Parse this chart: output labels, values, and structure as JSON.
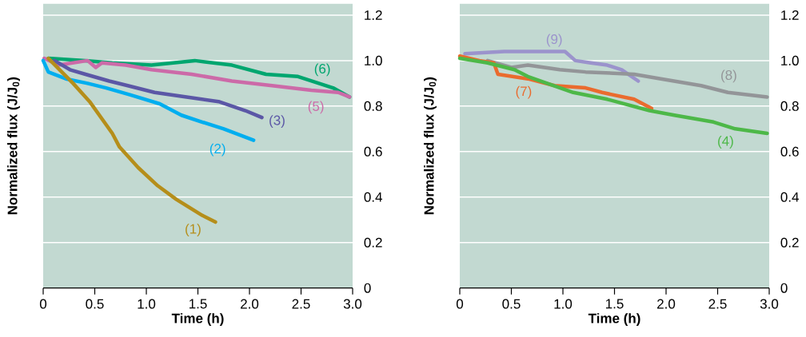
{
  "chart_data": [
    {
      "type": "line",
      "xlabel": "Time (h)",
      "ylabel": "Normalized flux (J/J$_{0}$)",
      "xlim": [
        0,
        3
      ],
      "ylim": [
        0,
        1.25
      ],
      "xticks": [
        0,
        {
          "value": 0.5,
          "label": "0.5"
        },
        {
          "value": 1,
          "label": "1.0"
        },
        {
          "value": 1.5,
          "label": "1.5"
        },
        {
          "value": 2,
          "label": "2.0"
        },
        {
          "value": 2.5,
          "label": "2.5"
        },
        {
          "value": 3,
          "label": "3.0"
        }
      ],
      "yticks": [
        0,
        {
          "value": 0.2,
          "label": "0.2"
        },
        {
          "value": 0.4,
          "label": "0.4"
        },
        {
          "value": 0.6,
          "label": "0.6"
        },
        {
          "value": 0.8,
          "label": "0.8"
        },
        {
          "value": 1,
          "label": "1.0"
        },
        {
          "value": 1.2,
          "label": "1.2"
        }
      ],
      "grid": "y",
      "marker": "none",
      "line_style": "solid",
      "series": [
        {
          "name": "(1)",
          "color": "#b58e1a",
          "x": [
            0.05,
            0.29,
            0.45,
            0.67,
            0.74,
            0.92,
            1.11,
            1.29,
            1.54,
            1.67
          ],
          "values": [
            1.01,
            0.9,
            0.82,
            0.68,
            0.62,
            0.53,
            0.45,
            0.39,
            0.32,
            0.29
          ]
        },
        {
          "name": "(2)",
          "color": "#00aeef",
          "x": [
            0,
            0.05,
            0.22,
            0.43,
            0.61,
            0.84,
            1.13,
            1.34,
            1.54,
            1.75,
            2.04
          ],
          "values": [
            1.0,
            0.95,
            0.92,
            0.9,
            0.88,
            0.85,
            0.81,
            0.76,
            0.73,
            0.7,
            0.65
          ]
        },
        {
          "name": "(3)",
          "color": "#5b57a6",
          "x": [
            0.11,
            0.26,
            0.41,
            0.64,
            0.82,
            1.08,
            1.39,
            1.7,
            1.96,
            2.12
          ],
          "values": [
            1.0,
            0.96,
            0.94,
            0.91,
            0.89,
            0.86,
            0.84,
            0.82,
            0.78,
            0.75
          ]
        },
        {
          "name": "(5)",
          "color": "#cc6aa8",
          "x": [
            0.01,
            0.15,
            0.43,
            0.51,
            0.57,
            0.8,
            1.05,
            1.44,
            1.83,
            2.22,
            2.6,
            2.86,
            2.97
          ],
          "values": [
            1.01,
            0.98,
            1.0,
            0.97,
            0.99,
            0.98,
            0.96,
            0.94,
            0.91,
            0.89,
            0.87,
            0.86,
            0.84
          ]
        },
        {
          "name": "(6)",
          "color": "#00a66f",
          "x": [
            0.05,
            0.41,
            0.67,
            1.05,
            1.47,
            1.83,
            2.16,
            2.47,
            2.81,
            2.97
          ],
          "values": [
            1.01,
            1.0,
            0.99,
            0.98,
            1.0,
            0.98,
            0.94,
            0.93,
            0.88,
            0.84
          ]
        }
      ]
    },
    {
      "type": "line",
      "xlabel": "Time (h)",
      "ylabel": "Normalized flux (J/J$_{0}$)",
      "xlim": [
        0,
        3
      ],
      "ylim": [
        0,
        1.25
      ],
      "xticks": [
        0,
        {
          "value": 0.5,
          "label": "0.5"
        },
        {
          "value": 1,
          "label": "1.0"
        },
        {
          "value": 1.5,
          "label": "1.5"
        },
        {
          "value": 2,
          "label": "2.0"
        },
        {
          "value": 2.5,
          "label": "2.5"
        },
        {
          "value": 3,
          "label": "3.0"
        }
      ],
      "yticks": [
        0,
        {
          "value": 0.2,
          "label": "0.2"
        },
        {
          "value": 0.4,
          "label": "0.4"
        },
        {
          "value": 0.6,
          "label": "0.6"
        },
        {
          "value": 0.8,
          "label": "0.8"
        },
        {
          "value": 1,
          "label": "1.0"
        },
        {
          "value": 1.2,
          "label": "1.2"
        }
      ],
      "grid": "y",
      "marker": "none",
      "line_style": "solid",
      "series": [
        {
          "name": "(4)",
          "color": "#4db848",
          "x": [
            0,
            0.27,
            0.53,
            0.66,
            1.1,
            1.43,
            1.84,
            2.08,
            2.46,
            2.67,
            2.98
          ],
          "values": [
            1.01,
            0.99,
            0.96,
            0.93,
            0.86,
            0.83,
            0.78,
            0.76,
            0.73,
            0.7,
            0.68
          ]
        },
        {
          "name": "(7)",
          "color": "#ea6b2e",
          "x": [
            0,
            0.19,
            0.33,
            0.37,
            0.66,
            0.92,
            1.22,
            1.38,
            1.69,
            1.86
          ],
          "values": [
            1.02,
            1.0,
            0.99,
            0.94,
            0.92,
            0.89,
            0.88,
            0.86,
            0.83,
            0.79
          ]
        },
        {
          "name": "(8)",
          "color": "#939598",
          "x": [
            0.27,
            0.5,
            0.66,
            0.97,
            1.22,
            1.69,
            1.95,
            2.34,
            2.6,
            2.98
          ],
          "values": [
            1.0,
            0.97,
            0.98,
            0.96,
            0.95,
            0.94,
            0.92,
            0.89,
            0.86,
            0.84
          ]
        },
        {
          "name": "(9)",
          "color": "#9b93cc",
          "x": [
            0.05,
            0.43,
            1.02,
            1.12,
            1.27,
            1.43,
            1.57,
            1.73
          ],
          "values": [
            1.03,
            1.04,
            1.04,
            1.0,
            0.99,
            0.98,
            0.96,
            0.91
          ]
        }
      ]
    }
  ]
}
